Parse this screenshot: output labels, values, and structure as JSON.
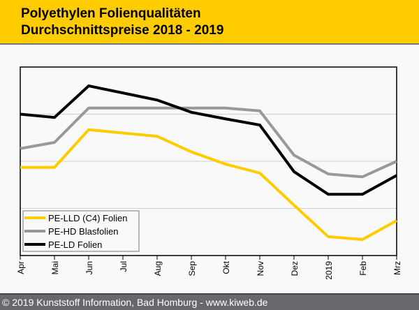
{
  "header": {
    "title_line1": "Polyethylen Folienqualitäten",
    "title_line2": "Durchschnittspreise 2018 - 2019"
  },
  "footer": {
    "copyright": "© 2019 Kunststoff Information, Bad Homburg - www.kiweb.de"
  },
  "colors": {
    "header_bg": "#ffcc00",
    "footer_bg": "#68686c",
    "pe_lld": "#ffcc00",
    "pe_hd": "#999999",
    "pe_ld": "#000000"
  },
  "chart_data": {
    "type": "line",
    "title": "Polyethylen Folienqualitäten Durchschnittspreise 2018 - 2019",
    "xlabel": "",
    "ylabel": "",
    "y_units": "relative (no y-axis labels shown)",
    "ylim": [
      0,
      4
    ],
    "grid": true,
    "legend_position": "bottom-left",
    "categories": [
      "Apr",
      "Mai",
      "Jun",
      "Jul",
      "Aug",
      "Sep",
      "Okt",
      "Nov",
      "Dez",
      "2019",
      "Feb",
      "Mrz"
    ],
    "series": [
      {
        "name": "PE-LLD (C4) Folien",
        "color": "#ffcc00",
        "values": [
          1.87,
          1.87,
          2.67,
          2.6,
          2.53,
          2.2,
          1.94,
          1.75,
          1.07,
          0.4,
          0.34,
          0.74
        ]
      },
      {
        "name": "PE-HD Blasfolien",
        "color": "#999999",
        "values": [
          2.27,
          2.4,
          3.13,
          3.13,
          3.13,
          3.13,
          3.13,
          3.07,
          2.13,
          1.73,
          1.67,
          2.0
        ]
      },
      {
        "name": "PE-LD Folien",
        "color": "#000000",
        "values": [
          3.0,
          2.93,
          3.6,
          3.45,
          3.3,
          3.04,
          2.9,
          2.77,
          1.78,
          1.3,
          1.3,
          1.7
        ]
      }
    ]
  }
}
